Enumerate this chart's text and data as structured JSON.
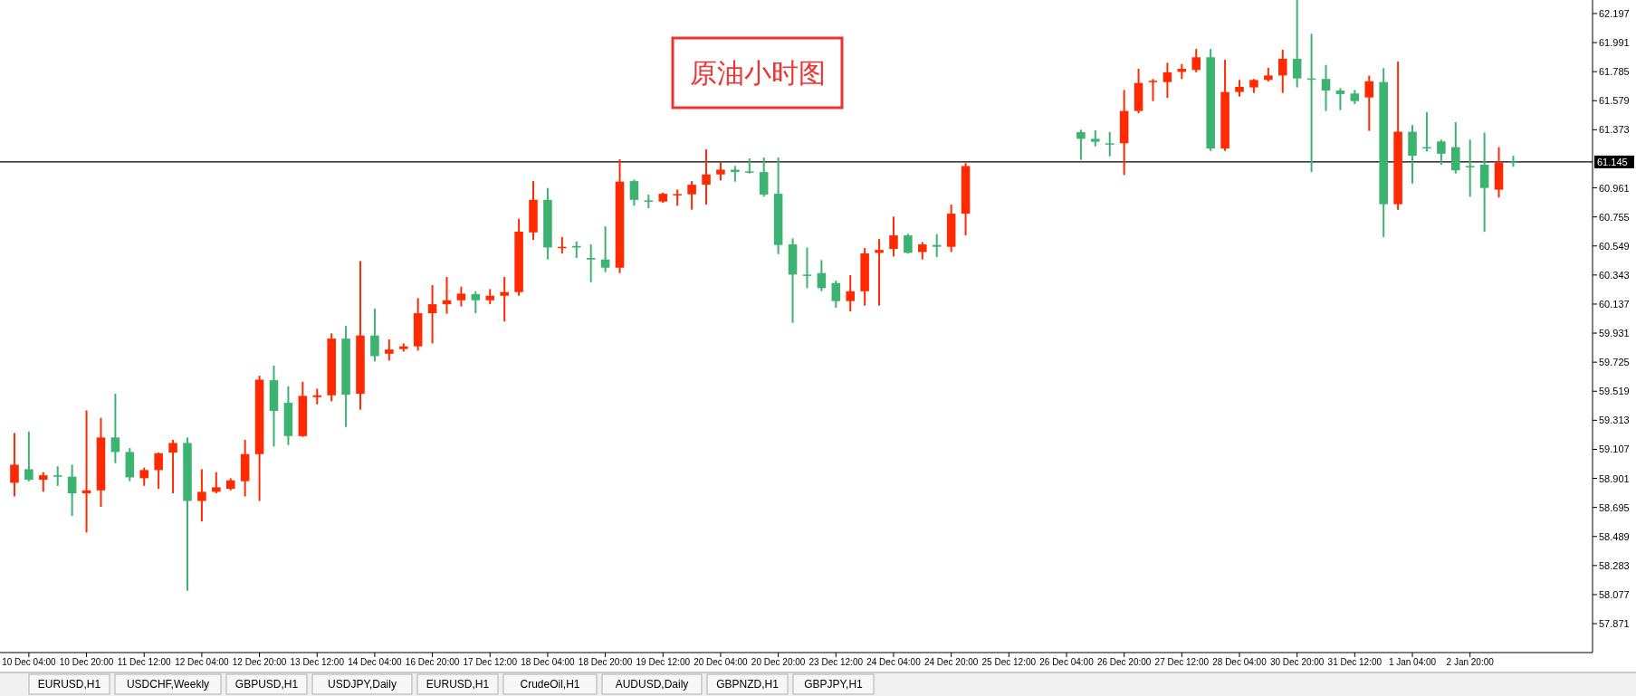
{
  "chart_data": {
    "type": "candlestick",
    "title": "原油小时图",
    "categories": [
      null,
      "10 Dec 04:00",
      null,
      null,
      null,
      "10 Dec 20:00",
      null,
      null,
      null,
      "11 Dec 12:00",
      null,
      null,
      null,
      "12 Dec 04:00",
      null,
      null,
      null,
      "12 Dec 20:00",
      null,
      null,
      null,
      "13 Dec 12:00",
      null,
      null,
      null,
      "14 Dec 04:00",
      null,
      null,
      null,
      "16 Dec 20:00",
      null,
      null,
      null,
      "17 Dec 12:00",
      null,
      null,
      null,
      "18 Dec 04:00",
      null,
      null,
      null,
      "18 Dec 20:00",
      null,
      null,
      null,
      "19 Dec 12:00",
      null,
      null,
      null,
      "20 Dec 04:00",
      null,
      null,
      null,
      "20 Dec 20:00",
      null,
      null,
      null,
      "23 Dec 12:00",
      null,
      null,
      null,
      "24 Dec 04:00",
      null,
      null,
      null,
      "24 Dec 20:00",
      null,
      null,
      null,
      "25 Dec 12:00",
      null,
      null,
      null,
      "26 Dec 04:00",
      null,
      null,
      null,
      "26 Dec 20:00",
      null,
      null,
      null,
      "27 Dec 12:00",
      null,
      null,
      null,
      "28 Dec 04:00",
      null,
      null,
      null,
      "30 Dec 20:00",
      null,
      null,
      null,
      "31 Dec 12:00",
      null,
      null,
      null,
      "1 Jan 04:00",
      null,
      null,
      null,
      "2 Jan 20:00",
      null,
      null,
      null,
      null,
      null,
      null,
      null,
      null
    ],
    "ohlc": [
      [
        58.87,
        59.223,
        58.773,
        58.998
      ],
      [
        58.966,
        59.233,
        58.88,
        58.891
      ],
      [
        58.891,
        58.945,
        58.806,
        58.923
      ],
      [
        58.923,
        58.987,
        58.848,
        58.913
      ],
      [
        58.913,
        58.998,
        58.634,
        58.795
      ],
      [
        58.795,
        59.383,
        58.517,
        58.816
      ],
      [
        58.816,
        59.33,
        58.699,
        59.191
      ],
      [
        59.191,
        59.501,
        59.009,
        59.088
      ],
      [
        59.088,
        59.116,
        58.881,
        58.908
      ],
      [
        58.902,
        58.977,
        58.848,
        58.96
      ],
      [
        58.96,
        59.084,
        58.827,
        59.079
      ],
      [
        59.084,
        59.174,
        58.795,
        59.152
      ],
      [
        59.152,
        59.191,
        58.104,
        58.741
      ],
      [
        58.741,
        58.966,
        58.596,
        58.806
      ],
      [
        58.806,
        58.945,
        58.795,
        58.838
      ],
      [
        58.827,
        58.902,
        58.816,
        58.887
      ],
      [
        58.881,
        59.174,
        58.773,
        59.073
      ],
      [
        59.073,
        59.629,
        58.741,
        59.601
      ],
      [
        59.597,
        59.7,
        59.126,
        59.379
      ],
      [
        59.437,
        59.554,
        59.137,
        59.201
      ],
      [
        59.201,
        59.586,
        59.195,
        59.486
      ],
      [
        59.477,
        59.537,
        59.426,
        59.49
      ],
      [
        59.49,
        59.929,
        59.447,
        59.892
      ],
      [
        59.892,
        59.982,
        59.266,
        59.494
      ],
      [
        59.501,
        60.442,
        59.388,
        59.914
      ],
      [
        59.914,
        60.104,
        59.73,
        59.768
      ],
      [
        59.785,
        59.886,
        59.736,
        59.815
      ],
      [
        59.818,
        59.858,
        59.8,
        59.837
      ],
      [
        59.837,
        60.179,
        59.807,
        60.072
      ],
      [
        60.072,
        60.271,
        59.858,
        60.136
      ],
      [
        60.136,
        60.329,
        60.068,
        60.164
      ],
      [
        60.164,
        60.26,
        60.121,
        60.211
      ],
      [
        60.207,
        60.228,
        60.072,
        60.164
      ],
      [
        60.164,
        60.243,
        60.136,
        60.196
      ],
      [
        60.196,
        60.329,
        60.014,
        60.222
      ],
      [
        60.222,
        60.742,
        60.196,
        60.65
      ],
      [
        60.645,
        61.009,
        60.592,
        60.876
      ],
      [
        60.876,
        60.96,
        60.453,
        60.538
      ],
      [
        60.538,
        60.613,
        60.496,
        60.543
      ],
      [
        60.549,
        60.581,
        60.464,
        60.538
      ],
      [
        60.464,
        60.56,
        60.292,
        60.453
      ],
      [
        60.453,
        60.688,
        60.363,
        60.395
      ],
      [
        60.395,
        61.163,
        60.357,
        61.005
      ],
      [
        61.009,
        61.02,
        60.834,
        60.876
      ],
      [
        60.872,
        60.913,
        60.817,
        60.864
      ],
      [
        60.864,
        60.928,
        60.855,
        60.919
      ],
      [
        60.913,
        60.949,
        60.834,
        60.917
      ],
      [
        60.915,
        61.009,
        60.806,
        60.983
      ],
      [
        60.983,
        61.234,
        60.842,
        61.056
      ],
      [
        61.056,
        61.146,
        61.013,
        61.09
      ],
      [
        61.09,
        61.116,
        61.005,
        61.073
      ],
      [
        61.078,
        61.17,
        61.063,
        61.073
      ],
      [
        61.073,
        61.176,
        60.898,
        60.913
      ],
      [
        60.919,
        61.176,
        60.491,
        60.556
      ],
      [
        60.56,
        60.603,
        60.004,
        60.346
      ],
      [
        60.346,
        60.538,
        60.25,
        60.346
      ],
      [
        60.357,
        60.449,
        60.228,
        60.25
      ],
      [
        60.286,
        60.303,
        60.111,
        60.158
      ],
      [
        60.158,
        60.342,
        60.085,
        60.228
      ],
      [
        60.228,
        60.534,
        60.126,
        60.496
      ],
      [
        60.5,
        60.598,
        60.126,
        60.521
      ],
      [
        60.528,
        60.757,
        60.474,
        60.624
      ],
      [
        60.624,
        60.635,
        60.496,
        60.5
      ],
      [
        60.506,
        60.577,
        60.453,
        60.56
      ],
      [
        60.556,
        60.633,
        60.47,
        60.543
      ],
      [
        60.543,
        60.842,
        60.506,
        60.778
      ],
      [
        60.778,
        61.137,
        60.624,
        61.116
      ],
      null,
      null,
      null,
      null,
      null,
      null,
      null,
      [
        61.356,
        61.373,
        61.159,
        61.309
      ],
      [
        61.309,
        61.369,
        61.255,
        61.288
      ],
      [
        61.277,
        61.356,
        61.185,
        61.277
      ],
      [
        61.277,
        61.655,
        61.052,
        61.506
      ],
      [
        61.506,
        61.805,
        61.491,
        61.705
      ],
      [
        61.711,
        61.733,
        61.576,
        61.72
      ],
      [
        61.711,
        61.848,
        61.598,
        61.78
      ],
      [
        61.784,
        61.839,
        61.733,
        61.805
      ],
      [
        61.797,
        61.946,
        61.78,
        61.887
      ],
      [
        61.887,
        61.946,
        61.223,
        61.24
      ],
      [
        61.24,
        61.869,
        61.223,
        61.641
      ],
      [
        61.641,
        61.726,
        61.608,
        61.677
      ],
      [
        61.673,
        61.733,
        61.634,
        61.726
      ],
      [
        61.726,
        61.812,
        61.715,
        61.758
      ],
      [
        61.758,
        61.94,
        61.634,
        61.876
      ],
      [
        61.876,
        62.293,
        61.673,
        61.737
      ],
      [
        61.737,
        62.053,
        61.074,
        61.733
      ],
      [
        61.733,
        61.833,
        61.506,
        61.651
      ],
      [
        61.651,
        61.668,
        61.512,
        61.626
      ],
      [
        61.63,
        61.655,
        61.555,
        61.576
      ],
      [
        61.602,
        61.757,
        61.365,
        61.717
      ],
      [
        61.711,
        61.81,
        60.612,
        60.845
      ],
      [
        60.845,
        61.857,
        60.805,
        61.359
      ],
      [
        61.359,
        61.406,
        60.991,
        61.188
      ],
      [
        61.25,
        61.499,
        61.219,
        61.25
      ],
      [
        61.29,
        61.303,
        61.125,
        61.203
      ],
      [
        61.25,
        61.427,
        61.063,
        61.085
      ],
      [
        61.116,
        61.303,
        60.898,
        61.116
      ],
      [
        61.125,
        61.353,
        60.649,
        60.96
      ],
      [
        60.948,
        61.25,
        60.892,
        61.141
      ],
      [
        61.147,
        61.188,
        61.11,
        61.141
      ],
      null,
      null,
      null,
      null,
      null
    ],
    "colors": [
      "#ff2a00",
      "#3cb371",
      "#ff2a00",
      "#3cb371",
      "#3cb371",
      "#ff2a00",
      "#ff2a00",
      "#3cb371",
      "#3cb371",
      "#ff2a00",
      "#ff2a00",
      "#ff2a00",
      "#3cb371",
      "#ff2a00",
      "#ff2a00",
      "#ff2a00",
      "#ff2a00",
      "#ff2a00",
      "#3cb371",
      "#3cb371",
      "#ff2a00",
      "#ff2a00",
      "#ff2a00",
      "#3cb371",
      "#ff2a00",
      "#3cb371",
      "#ff2a00",
      "#ff2a00",
      "#ff2a00",
      "#ff2a00",
      "#ff2a00",
      "#ff2a00",
      "#3cb371",
      "#ff2a00",
      "#ff2a00",
      "#ff2a00",
      "#ff2a00",
      "#3cb371",
      "#ff2a00",
      "#3cb371",
      "#3cb371",
      "#3cb371",
      "#ff2a00",
      "#3cb371",
      "#3cb371",
      "#ff2a00",
      "#ff2a00",
      "#ff2a00",
      "#ff2a00",
      "#ff2a00",
      "#3cb371",
      "#3cb371",
      "#3cb371",
      "#3cb371",
      "#3cb371",
      "#3cb371",
      "#3cb371",
      "#3cb371",
      "#ff2a00",
      "#ff2a00",
      "#ff2a00",
      "#ff2a00",
      "#3cb371",
      "#ff2a00",
      "#3cb371",
      "#ff2a00",
      "#ff2a00",
      null,
      null,
      null,
      null,
      null,
      null,
      null,
      "#3cb371",
      "#3cb371",
      "#3cb371",
      "#ff2a00",
      "#ff2a00",
      "#ff2a00",
      "#ff2a00",
      "#ff2a00",
      "#ff2a00",
      "#3cb371",
      "#ff2a00",
      "#ff2a00",
      "#ff2a00",
      "#ff2a00",
      "#ff2a00",
      "#3cb371",
      "#3cb371",
      "#3cb371",
      "#3cb371",
      "#3cb371",
      "#ff2a00",
      "#3cb371",
      "#ff2a00",
      "#3cb371",
      "#3cb371",
      "#3cb371",
      "#3cb371",
      "#3cb371",
      "#3cb371",
      "#ff2a00",
      "#3cb371",
      null,
      null,
      null,
      null,
      null
    ],
    "ylim": [
      57.666,
      62.293
    ],
    "yticks": [
      62.197,
      61.991,
      61.785,
      61.579,
      61.373,
      60.961,
      60.755,
      60.549,
      60.343,
      60.137,
      59.931,
      59.725,
      59.519,
      59.313,
      59.107,
      58.901,
      58.695,
      58.489,
      58.283,
      58.077,
      57.871
    ],
    "ref_lines": [
      {
        "axis": "y",
        "value": 61.145,
        "label": "61.145",
        "color": "#000000"
      }
    ],
    "annotations": [
      "EURUSD,H1",
      "USDCHF,Weekly",
      "GBPUSD,H1",
      "USDJPY,Daily",
      "EURUSD,H1",
      "CrudeOil,H1",
      "AUDUSD,Daily",
      "GBPNZD,H1",
      "GBPJPY,H1"
    ]
  }
}
